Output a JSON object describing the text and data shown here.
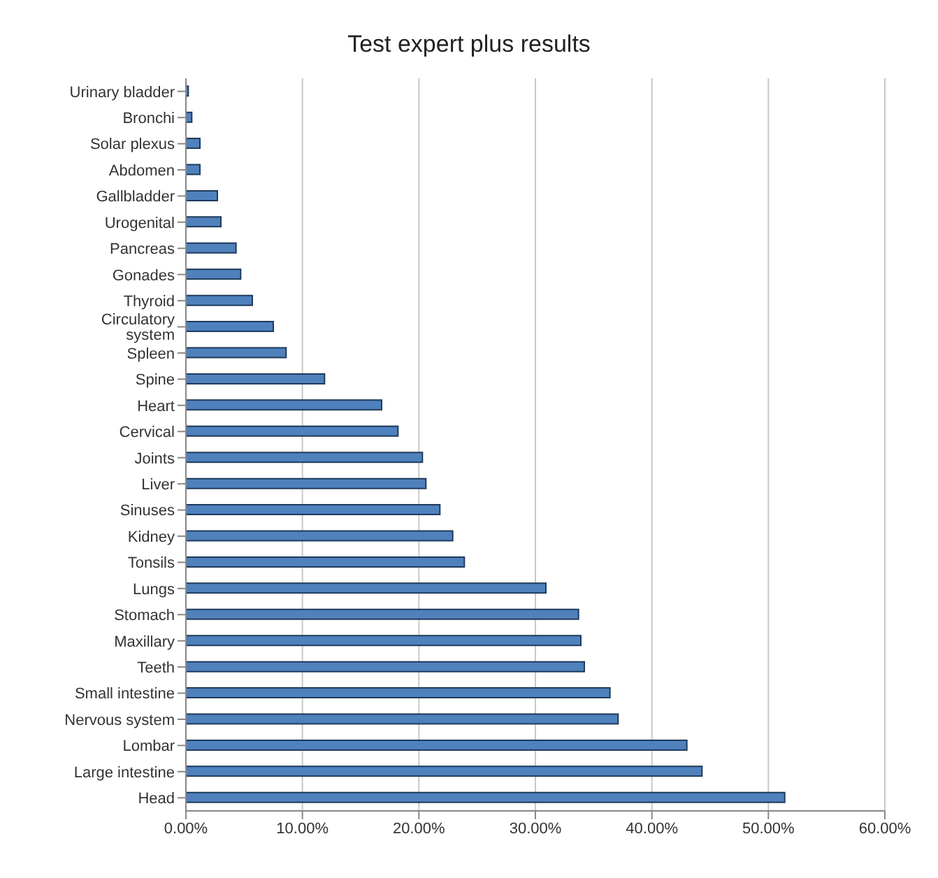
{
  "chart_data": {
    "type": "bar",
    "orientation": "horizontal",
    "title": "Test expert plus results",
    "categories": [
      "Urinary bladder",
      "Bronchi",
      "Solar plexus",
      "Abdomen",
      "Gallbladder",
      "Urogenital",
      "Pancreas",
      "Gonades",
      "Thyroid",
      "Circulatory system",
      "Spleen",
      "Spine",
      "Heart",
      "Cervical",
      "Joints",
      "Liver",
      "Sinuses",
      "Kidney",
      "Tonsils",
      "Lungs",
      "Stomach",
      "Maxillary",
      "Teeth",
      "Small intestine",
      "Nervous system",
      "Lombar",
      "Large intestine",
      "Head"
    ],
    "values": [
      0.2,
      0.5,
      1.2,
      1.2,
      2.7,
      3.0,
      4.3,
      4.7,
      5.7,
      7.5,
      8.6,
      11.9,
      16.8,
      18.2,
      20.3,
      20.6,
      21.8,
      22.9,
      23.9,
      30.9,
      33.7,
      33.9,
      34.2,
      36.4,
      37.1,
      43.0,
      44.3,
      51.4
    ],
    "color": "#4f81bd",
    "xlim": [
      0,
      60
    ],
    "xticks": [
      {
        "value": 0,
        "label": "0.00%"
      },
      {
        "value": 10,
        "label": "10.00%"
      },
      {
        "value": 20,
        "label": "20.00%"
      },
      {
        "value": 30,
        "label": "30.00%"
      },
      {
        "value": 40,
        "label": "40.00%"
      },
      {
        "value": 50,
        "label": "50.00%"
      },
      {
        "value": 60,
        "label": "60.00%"
      }
    ],
    "grid": "x",
    "legend": false
  }
}
